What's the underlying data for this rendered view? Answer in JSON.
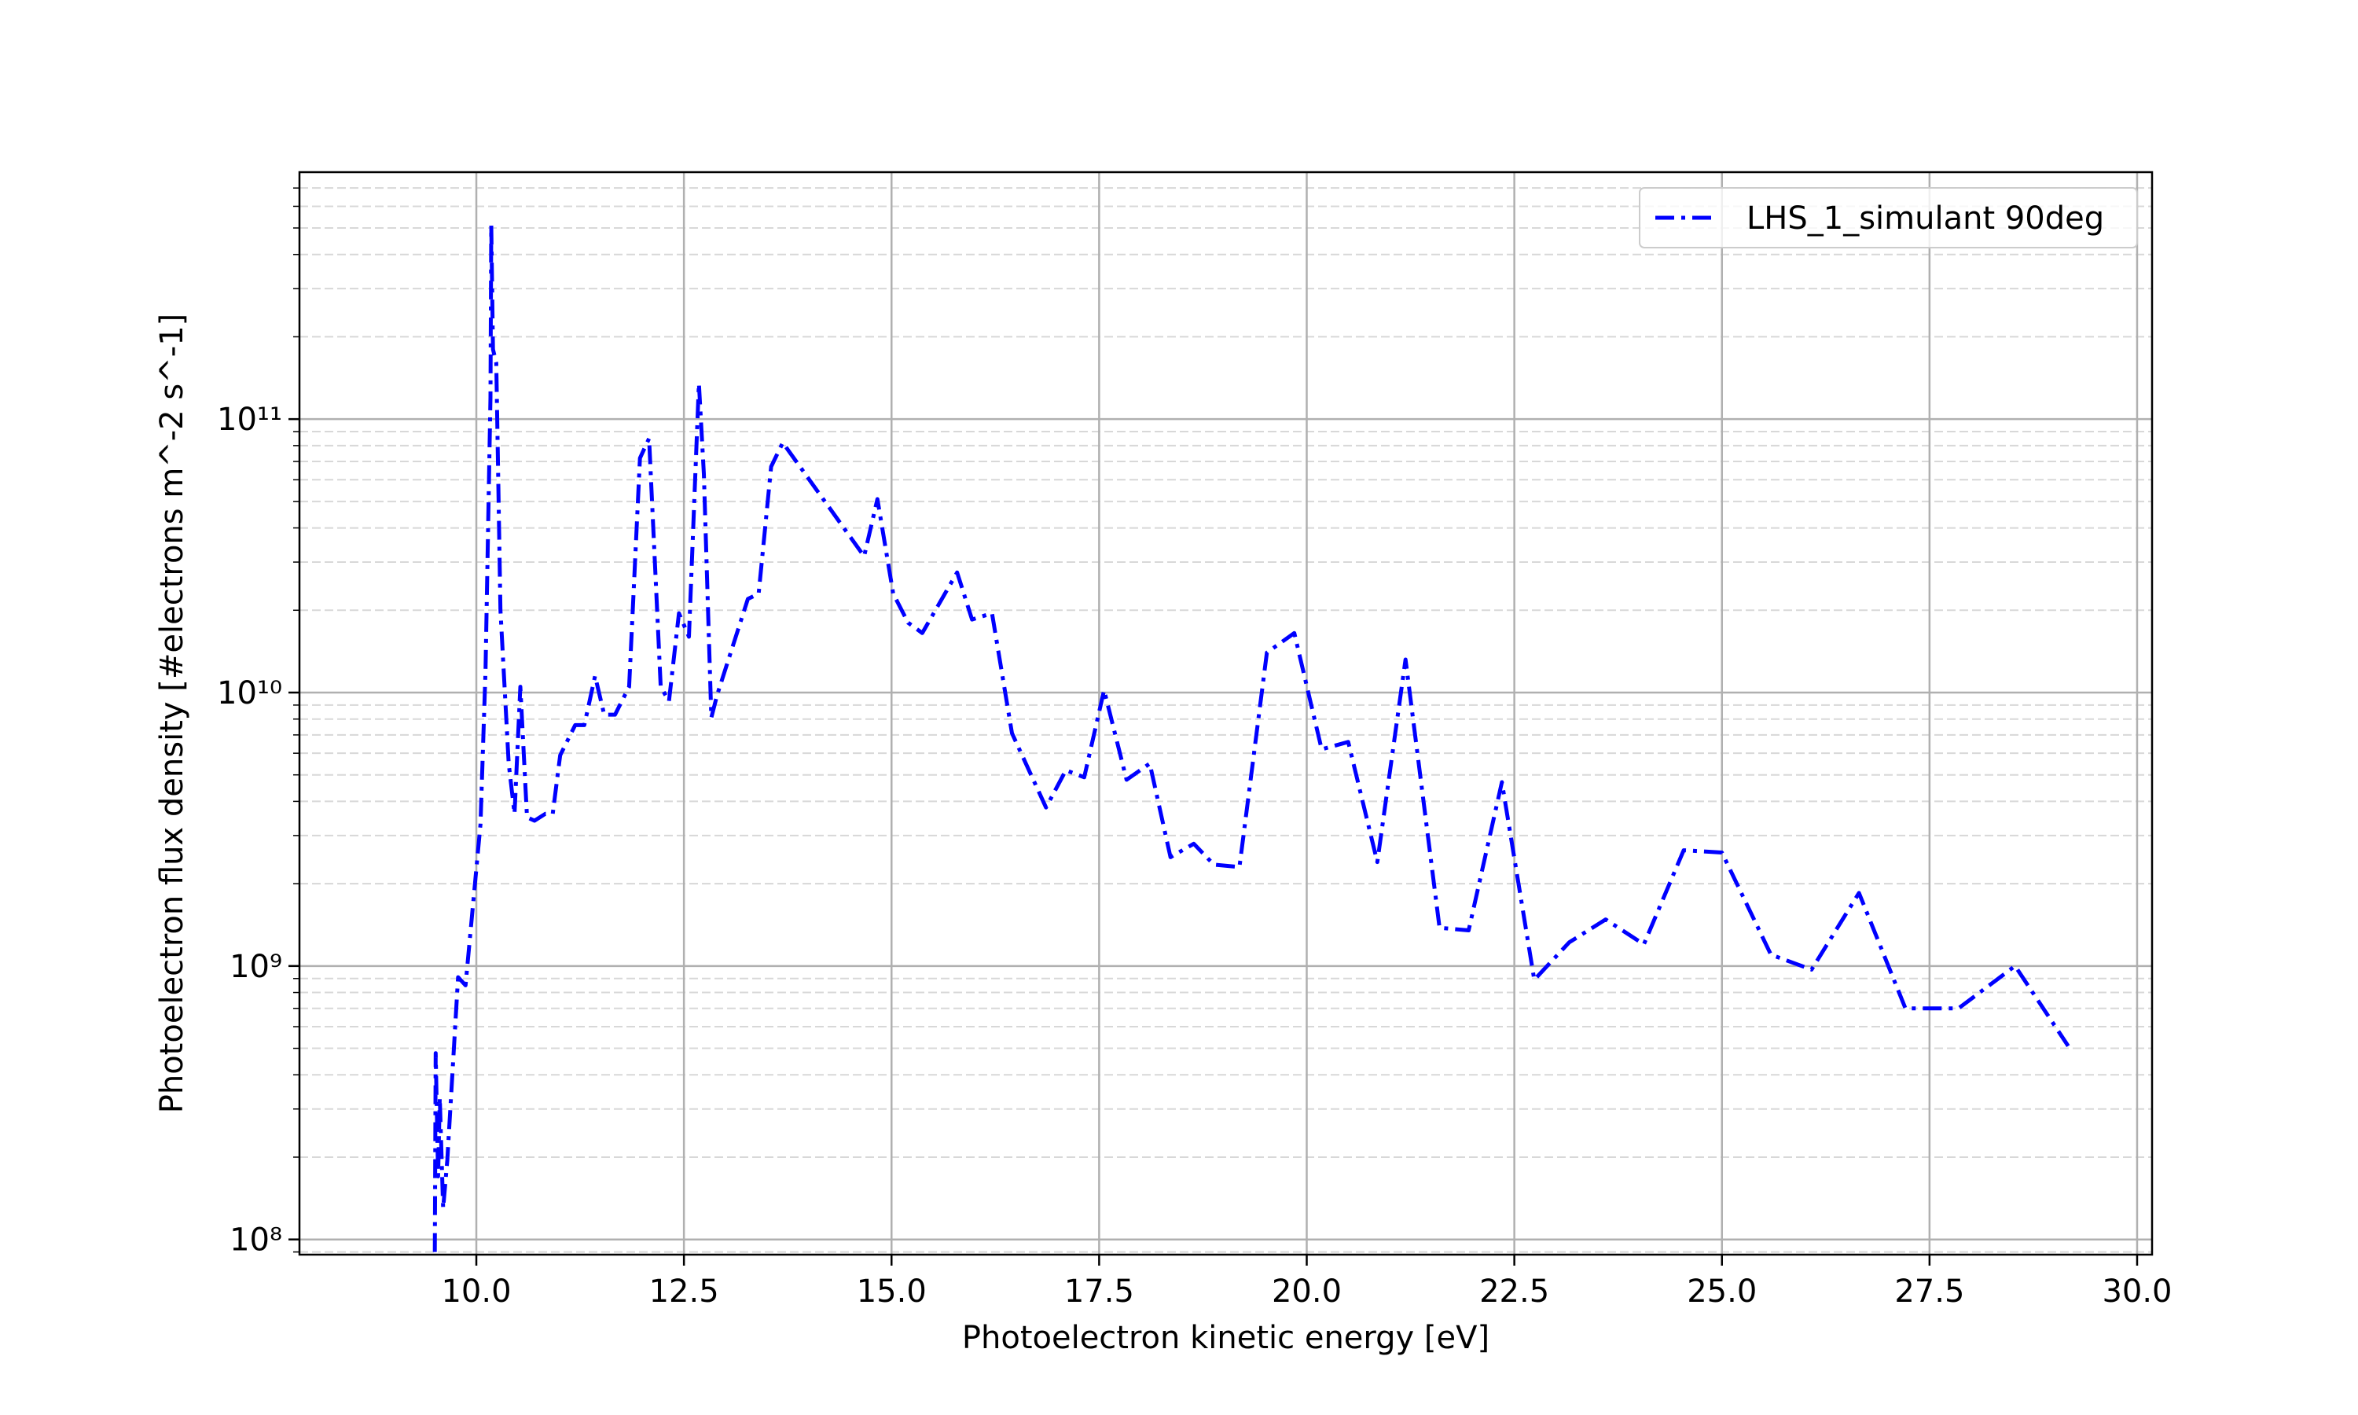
{
  "chart_data": {
    "type": "line",
    "xlabel": "Photoelectron kinetic energy [eV]",
    "ylabel": "Photoelectron flux density [#electrons m^-2 s^-1]",
    "x": [
      9.5,
      9.51,
      9.54,
      9.56,
      9.6,
      9.65,
      9.78,
      9.87,
      10.05,
      10.11,
      10.17,
      10.18,
      10.2,
      10.24,
      10.29,
      10.39,
      10.46,
      10.53,
      10.61,
      10.7,
      10.83,
      10.92,
      11.01,
      11.19,
      11.3,
      11.43,
      11.54,
      11.67,
      11.84,
      11.97,
      12.08,
      12.22,
      12.32,
      12.44,
      12.56,
      12.68,
      12.74,
      12.83,
      12.9,
      13.27,
      13.4,
      13.55,
      13.69,
      14.01,
      14.67,
      14.83,
      15.02,
      15.2,
      15.37,
      15.79,
      15.97,
      16.21,
      16.45,
      16.86,
      17.1,
      17.32,
      17.56,
      17.83,
      18.11,
      18.36,
      18.64,
      18.88,
      19.19,
      19.52,
      19.85,
      20.18,
      20.5,
      20.85,
      21.19,
      21.6,
      21.95,
      22.35,
      22.74,
      23.16,
      23.6,
      24.06,
      24.54,
      25.0,
      25.59,
      26.08,
      26.65,
      27.21,
      27.85,
      28.53,
      29.17
    ],
    "series": [
      {
        "name": "LHS_1_simulant 90deg",
        "color": "#0000ff",
        "values": [
          90000000.0,
          480000000.0,
          170000000.0,
          330000000.0,
          130000000.0,
          195000000.0,
          910000000.0,
          850000000.0,
          3300000000.0,
          12000000000.0,
          120000000000.0,
          510000000000.0,
          180000000000.0,
          160000000000.0,
          20000000000.0,
          5500000000.0,
          3600000000.0,
          10500000000.0,
          3500000000.0,
          3400000000.0,
          3600000000.0,
          3600000000.0,
          5900000000.0,
          7600000000.0,
          7600000000.0,
          11500000000.0,
          8300000000.0,
          8300000000.0,
          10500000000.0,
          72000000000.0,
          85000000000.0,
          10500000000.0,
          9300000000.0,
          19500000000.0,
          16000000000.0,
          135000000000.0,
          63000000000.0,
          8100000000.0,
          9800000000.0,
          22000000000.0,
          23000000000.0,
          67000000000.0,
          82000000000.0,
          60000000000.0,
          31500000000.0,
          51000000000.0,
          23000000000.0,
          18000000000.0,
          16500000000.0,
          27500000000.0,
          18500000000.0,
          19500000000.0,
          7100000000.0,
          3800000000.0,
          5200000000.0,
          4900000000.0,
          10200000000.0,
          4800000000.0,
          5500000000.0,
          2500000000.0,
          2800000000.0,
          2350000000.0,
          2300000000.0,
          14000000000.0,
          16500000000.0,
          6200000000.0,
          6600000000.0,
          2400000000.0,
          13200000000.0,
          1380000000.0,
          1350000000.0,
          4700000000.0,
          890000000.0,
          1220000000.0,
          1480000000.0,
          1200000000.0,
          2650000000.0,
          2600000000.0,
          1100000000.0,
          970000000.0,
          1850000000.0,
          700000000.0,
          700000000.0,
          1000000000.0,
          510000000.0
        ]
      }
    ],
    "xlim": [
      7.87,
      30.18
    ],
    "ylim": [
      88000000.0,
      800000000000.0
    ],
    "ylog": true,
    "xticks": [
      {
        "value": 10,
        "label": "10.0"
      },
      12.5,
      {
        "value": 15,
        "label": "15.0"
      },
      17.5,
      {
        "value": 20,
        "label": "20.0"
      },
      22.5,
      {
        "value": 25,
        "label": "25.0"
      },
      27.5,
      {
        "value": 30,
        "label": "30.0"
      }
    ],
    "yticks": [
      {
        "value": 100000000.0,
        "label": "10⁸"
      },
      {
        "value": 1000000000.0,
        "label": "10⁹"
      },
      {
        "value": 10000000000.0,
        "label": "10¹⁰"
      },
      {
        "value": 100000000000.0,
        "label": "10¹¹"
      }
    ],
    "yminorticks": [
      90000000.0,
      200000000.0,
      300000000.0,
      400000000.0,
      500000000.0,
      600000000.0,
      700000000.0,
      800000000.0,
      900000000.0,
      2000000000.0,
      3000000000.0,
      4000000000.0,
      5000000000.0,
      6000000000.0,
      7000000000.0,
      8000000000.0,
      9000000000.0,
      20000000000.0,
      30000000000.0,
      40000000000.0,
      50000000000.0,
      60000000000.0,
      70000000000.0,
      80000000000.0,
      90000000000.0,
      200000000000.0,
      300000000000.0,
      400000000000.0,
      500000000000.0,
      600000000000.0,
      700000000000.0
    ],
    "grid": true,
    "minor_grid": true,
    "legend": "upper right"
  }
}
